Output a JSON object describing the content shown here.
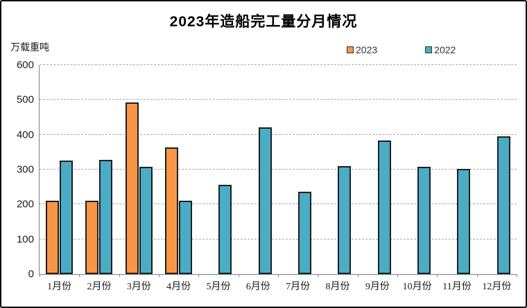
{
  "title": "2023年造船完工量分月情况",
  "unit_label": "万载重吨",
  "colors": {
    "series_2023": "#F79646",
    "series_2022": "#4BACC6",
    "bar_outline": "#1f1f1f",
    "axis": "#7f7f7f",
    "gridline": "#a8a8a8",
    "background": "#ffffff",
    "border": "#000000"
  },
  "chart_data": {
    "type": "bar",
    "title": "2023年造船完工量分月情况",
    "ylabel": "万载重吨",
    "xlabel": "",
    "categories": [
      "1月份",
      "2月份",
      "3月份",
      "4月份",
      "5月份",
      "6月份",
      "7月份",
      "8月份",
      "9月份",
      "10月份",
      "11月份",
      "12月份"
    ],
    "series": [
      {
        "name": "2023",
        "color": "#F79646",
        "values": [
          211,
          211,
          493,
          363,
          null,
          null,
          null,
          null,
          null,
          null,
          null,
          null
        ]
      },
      {
        "name": "2022",
        "color": "#4BACC6",
        "values": [
          326,
          328,
          308,
          210,
          256,
          421,
          236,
          310,
          384,
          308,
          303,
          395
        ]
      }
    ],
    "ylim": [
      0,
      600
    ],
    "ytick_step": 100,
    "yticks": [
      0,
      100,
      200,
      300,
      400,
      500,
      600
    ],
    "grid": "horizontal-dashed",
    "legend_position": "top-right"
  }
}
